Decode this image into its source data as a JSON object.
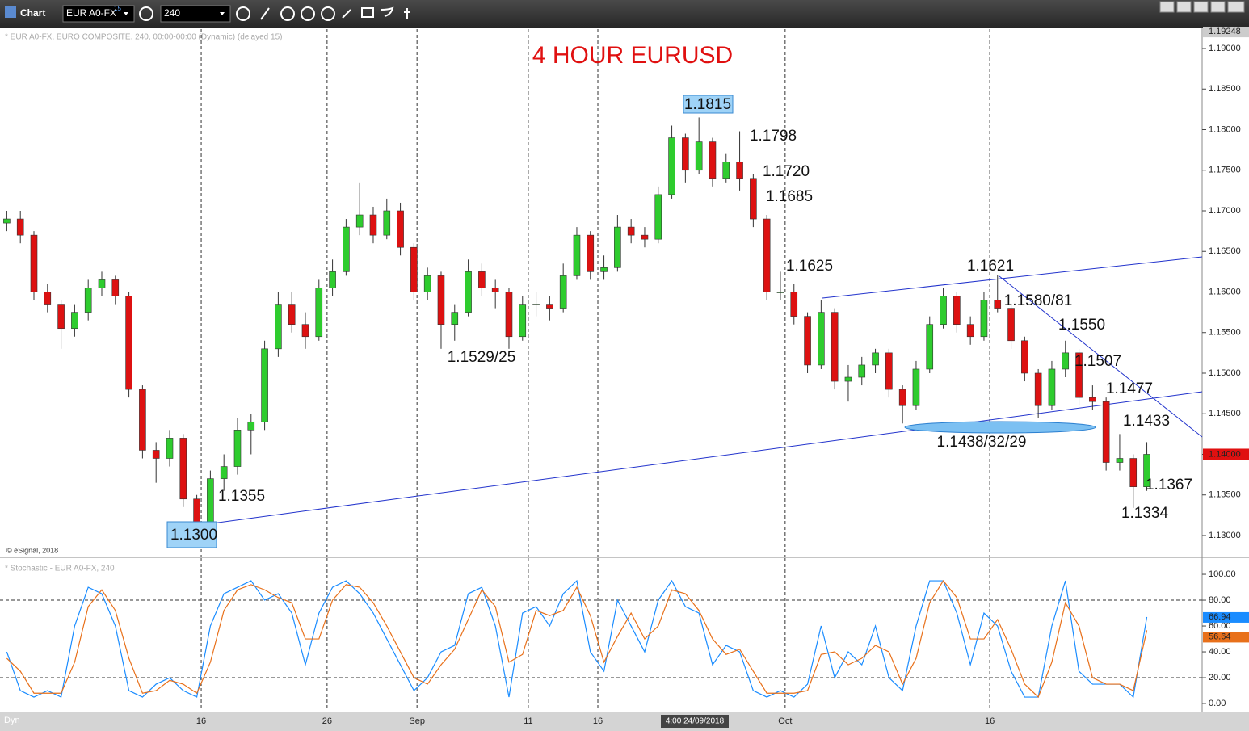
{
  "toolbar": {
    "title": "Chart",
    "symbol": "EUR A0-FX",
    "delay": "15",
    "interval": "240",
    "dyn": "Dyn",
    "cursor_label": "4:00 24/09/2018"
  },
  "chart_data": [
    {
      "type": "candlestick",
      "title": "4 HOUR EURUSD",
      "header": "* EUR A0-FX, EURO COMPOSITE, 240, 00:00-00:00 (Dynamic) (delayed 15)",
      "footer": "© eSignal, 2018",
      "up_color": "#2ecc2e",
      "down_color": "#dd1111",
      "line_color": "#2233cc",
      "xlim": [
        0,
        354.3
      ],
      "xticks": [
        {
          "value": 59.3,
          "label": "16"
        },
        {
          "value": 96.4,
          "label": "26"
        },
        {
          "value": 122.9,
          "label": "Sep"
        },
        {
          "value": 155.7,
          "label": "11"
        },
        {
          "value": 176.2,
          "label": "16"
        },
        {
          "value": 231.4,
          "label": "Oct"
        },
        {
          "value": 291.7,
          "label": "16"
        }
      ],
      "ylim": [
        1.12751,
        1.19229
      ],
      "yticks": [
        {
          "value": 1.13,
          "label": "1.13000"
        },
        {
          "value": 1.135,
          "label": "1.13500"
        },
        {
          "value": 1.14,
          "label": "1.14000"
        },
        {
          "value": 1.145,
          "label": "1.14500"
        },
        {
          "value": 1.15,
          "label": "1.15000"
        },
        {
          "value": 1.155,
          "label": "1.15500"
        },
        {
          "value": 1.16,
          "label": "1.16000"
        },
        {
          "value": 1.165,
          "label": "1.16500"
        },
        {
          "value": 1.17,
          "label": "1.17000"
        },
        {
          "value": 1.175,
          "label": "1.17500"
        },
        {
          "value": 1.18,
          "label": "1.18000"
        },
        {
          "value": 1.185,
          "label": "1.18500"
        },
        {
          "value": 1.19,
          "label": "1.19000"
        }
      ],
      "axis_top": 1.19248,
      "last_price": {
        "value": 1.14,
        "label": "1.14000"
      },
      "annotations": [
        "1.1815",
        "1.1798",
        "1.1720",
        "1.1685",
        "1.1625",
        "1.1621",
        "1.1580/81",
        "1.1550",
        "1.1507",
        "1.1477",
        "1.1433",
        "1.1438/32/29",
        "1.1367",
        "1.1334",
        "1.1529/25",
        "1.1355",
        "1.1300"
      ],
      "x": [
        2,
        6,
        10,
        14,
        18,
        22,
        26,
        30,
        34,
        38,
        42,
        46,
        50,
        54,
        58,
        62,
        66,
        70,
        74,
        78,
        82,
        86,
        90,
        94,
        98,
        102,
        106,
        110,
        114,
        118,
        122,
        126,
        130,
        134,
        138,
        142,
        146,
        150,
        154,
        158,
        162,
        166,
        170,
        174,
        178,
        182,
        186,
        190,
        194,
        198,
        202,
        206,
        210,
        214,
        218,
        222,
        226,
        230,
        234,
        238,
        242,
        246,
        250,
        254,
        258,
        262,
        266,
        270,
        274,
        278,
        282,
        286,
        290,
        294,
        298,
        302,
        306,
        310,
        314,
        318,
        322,
        326,
        330,
        334,
        338
      ],
      "ohlc": [
        [
          1.1685,
          1.17,
          1.1675,
          1.169
        ],
        [
          1.169,
          1.17,
          1.166,
          1.167
        ],
        [
          1.167,
          1.1675,
          1.159,
          1.16
        ],
        [
          1.16,
          1.161,
          1.1575,
          1.1585
        ],
        [
          1.1585,
          1.159,
          1.153,
          1.1555
        ],
        [
          1.1555,
          1.1585,
          1.1545,
          1.1575
        ],
        [
          1.1575,
          1.1615,
          1.1565,
          1.1605
        ],
        [
          1.1605,
          1.1625,
          1.1595,
          1.1615
        ],
        [
          1.1615,
          1.162,
          1.1585,
          1.1595
        ],
        [
          1.1595,
          1.16,
          1.147,
          1.148
        ],
        [
          1.148,
          1.1485,
          1.1395,
          1.1405
        ],
        [
          1.1405,
          1.1415,
          1.1365,
          1.1395
        ],
        [
          1.1395,
          1.143,
          1.1385,
          1.142
        ],
        [
          1.142,
          1.1425,
          1.1335,
          1.1345
        ],
        [
          1.1345,
          1.135,
          1.13,
          1.1315
        ],
        [
          1.1315,
          1.138,
          1.131,
          1.137
        ],
        [
          1.137,
          1.14,
          1.1355,
          1.1385
        ],
        [
          1.1385,
          1.1445,
          1.1375,
          1.143
        ],
        [
          1.143,
          1.145,
          1.14,
          1.144
        ],
        [
          1.144,
          1.154,
          1.143,
          1.153
        ],
        [
          1.153,
          1.16,
          1.152,
          1.1585
        ],
        [
          1.1585,
          1.16,
          1.155,
          1.156
        ],
        [
          1.156,
          1.1575,
          1.153,
          1.1545
        ],
        [
          1.1545,
          1.1615,
          1.154,
          1.1605
        ],
        [
          1.1605,
          1.164,
          1.1595,
          1.1625
        ],
        [
          1.1625,
          1.169,
          1.162,
          1.168
        ],
        [
          1.168,
          1.1735,
          1.167,
          1.1695
        ],
        [
          1.1695,
          1.1705,
          1.166,
          1.167
        ],
        [
          1.167,
          1.1715,
          1.1665,
          1.17
        ],
        [
          1.17,
          1.171,
          1.1645,
          1.1655
        ],
        [
          1.1655,
          1.166,
          1.159,
          1.16
        ],
        [
          1.16,
          1.163,
          1.159,
          1.162
        ],
        [
          1.162,
          1.1625,
          1.153,
          1.156
        ],
        [
          1.156,
          1.1585,
          1.154,
          1.1575
        ],
        [
          1.1575,
          1.164,
          1.157,
          1.1625
        ],
        [
          1.1625,
          1.1635,
          1.1595,
          1.1605
        ],
        [
          1.1605,
          1.1615,
          1.158,
          1.16
        ],
        [
          1.16,
          1.1605,
          1.153,
          1.1545
        ],
        [
          1.1545,
          1.1595,
          1.154,
          1.1585
        ],
        [
          1.1585,
          1.16,
          1.157,
          1.1585
        ],
        [
          1.1585,
          1.1595,
          1.1565,
          1.158
        ],
        [
          1.158,
          1.1635,
          1.1575,
          1.162
        ],
        [
          1.162,
          1.168,
          1.1615,
          1.167
        ],
        [
          1.167,
          1.1675,
          1.1615,
          1.1625
        ],
        [
          1.1625,
          1.1645,
          1.1615,
          1.163
        ],
        [
          1.163,
          1.1695,
          1.1625,
          1.168
        ],
        [
          1.168,
          1.169,
          1.166,
          1.167
        ],
        [
          1.167,
          1.168,
          1.1655,
          1.1665
        ],
        [
          1.1665,
          1.173,
          1.166,
          1.172
        ],
        [
          1.172,
          1.1805,
          1.1715,
          1.179
        ],
        [
          1.179,
          1.1795,
          1.1735,
          1.175
        ],
        [
          1.175,
          1.1815,
          1.1745,
          1.1785
        ],
        [
          1.1785,
          1.179,
          1.173,
          1.174
        ],
        [
          1.174,
          1.177,
          1.1735,
          1.176
        ],
        [
          1.176,
          1.1798,
          1.1725,
          1.174
        ],
        [
          1.174,
          1.1745,
          1.168,
          1.169
        ],
        [
          1.169,
          1.1695,
          1.159,
          1.16
        ],
        [
          1.16,
          1.1625,
          1.159,
          1.16
        ],
        [
          1.16,
          1.161,
          1.156,
          1.157
        ],
        [
          1.157,
          1.1575,
          1.15,
          1.151
        ],
        [
          1.151,
          1.159,
          1.1505,
          1.1575
        ],
        [
          1.1575,
          1.158,
          1.148,
          1.149
        ],
        [
          1.149,
          1.151,
          1.1465,
          1.1495
        ],
        [
          1.1495,
          1.152,
          1.1485,
          1.151
        ],
        [
          1.151,
          1.153,
          1.15,
          1.1525
        ],
        [
          1.1525,
          1.153,
          1.147,
          1.148
        ],
        [
          1.148,
          1.1485,
          1.1438,
          1.146
        ],
        [
          1.146,
          1.1515,
          1.1455,
          1.1505
        ],
        [
          1.1505,
          1.157,
          1.15,
          1.156
        ],
        [
          1.156,
          1.1605,
          1.1555,
          1.1595
        ],
        [
          1.1595,
          1.16,
          1.155,
          1.156
        ],
        [
          1.156,
          1.157,
          1.1535,
          1.1545
        ],
        [
          1.1545,
          1.16,
          1.154,
          1.159
        ],
        [
          1.159,
          1.1621,
          1.1575,
          1.158
        ],
        [
          1.158,
          1.1585,
          1.153,
          1.154
        ],
        [
          1.154,
          1.1545,
          1.149,
          1.15
        ],
        [
          1.15,
          1.1505,
          1.1445,
          1.146
        ],
        [
          1.146,
          1.1515,
          1.1455,
          1.1505
        ],
        [
          1.1505,
          1.154,
          1.1495,
          1.1525
        ],
        [
          1.1525,
          1.153,
          1.146,
          1.147
        ],
        [
          1.147,
          1.1485,
          1.1455,
          1.1465
        ],
        [
          1.1465,
          1.147,
          1.138,
          1.139
        ],
        [
          1.139,
          1.1425,
          1.138,
          1.1395
        ],
        [
          1.1395,
          1.14,
          1.1334,
          1.136
        ],
        [
          1.136,
          1.1415,
          1.1355,
          1.14
        ]
      ]
    },
    {
      "type": "line",
      "header": "* Stochastic - EUR A0-FX, 240",
      "xlim": [
        0,
        354.3
      ],
      "ylim": [
        -5.6,
        111.9
      ],
      "yticks": [
        {
          "value": 0,
          "label": "0.00"
        },
        {
          "value": 20,
          "label": "20.00"
        },
        {
          "value": 40,
          "label": "40.00"
        },
        {
          "value": 60,
          "label": "60.00"
        },
        {
          "value": 80,
          "label": "80.00"
        },
        {
          "value": 100,
          "label": "100.00"
        }
      ],
      "levels": [
        20,
        80
      ],
      "x": [
        2,
        6,
        10,
        14,
        18,
        22,
        26,
        30,
        34,
        38,
        42,
        46,
        50,
        54,
        58,
        62,
        66,
        70,
        74,
        78,
        82,
        86,
        90,
        94,
        98,
        102,
        106,
        110,
        114,
        118,
        122,
        126,
        130,
        134,
        138,
        142,
        146,
        150,
        154,
        158,
        162,
        166,
        170,
        174,
        178,
        182,
        186,
        190,
        194,
        198,
        202,
        206,
        210,
        214,
        218,
        222,
        226,
        230,
        234,
        238,
        242,
        246,
        250,
        254,
        258,
        262,
        266,
        270,
        274,
        278,
        282,
        286,
        290,
        294,
        298,
        302,
        306,
        310,
        314,
        318,
        322,
        326,
        330,
        334,
        338
      ],
      "series": [
        {
          "color": "#1a8cff",
          "values": [
            40,
            10,
            5,
            10,
            5,
            60,
            90,
            85,
            60,
            10,
            5,
            15,
            20,
            10,
            5,
            60,
            85,
            90,
            95,
            80,
            85,
            70,
            30,
            70,
            90,
            95,
            85,
            70,
            50,
            30,
            10,
            20,
            40,
            45,
            85,
            90,
            60,
            5,
            70,
            75,
            60,
            85,
            95,
            40,
            25,
            80,
            60,
            40,
            80,
            95,
            75,
            70,
            30,
            45,
            40,
            10,
            5,
            10,
            5,
            15,
            60,
            20,
            40,
            30,
            60,
            20,
            10,
            60,
            95,
            95,
            70,
            30,
            70,
            60,
            25,
            5,
            5,
            60,
            95,
            25,
            15,
            15,
            15,
            5,
            66.94
          ]
        },
        {
          "color": "#e8701a",
          "values": [
            35,
            25,
            8,
            8,
            8,
            32,
            75,
            88,
            72,
            35,
            8,
            10,
            18,
            15,
            8,
            32,
            72,
            88,
            92,
            88,
            82,
            78,
            50,
            50,
            80,
            92,
            90,
            78,
            60,
            40,
            20,
            15,
            30,
            42,
            65,
            88,
            75,
            32,
            38,
            72,
            68,
            72,
            90,
            68,
            32,
            52,
            70,
            50,
            60,
            88,
            85,
            72,
            50,
            38,
            42,
            25,
            8,
            8,
            8,
            10,
            38,
            40,
            30,
            35,
            45,
            40,
            15,
            35,
            78,
            95,
            82,
            50,
            50,
            65,
            42,
            15,
            5,
            32,
            78,
            60,
            20,
            15,
            15,
            10,
            56.64
          ]
        }
      ]
    }
  ]
}
